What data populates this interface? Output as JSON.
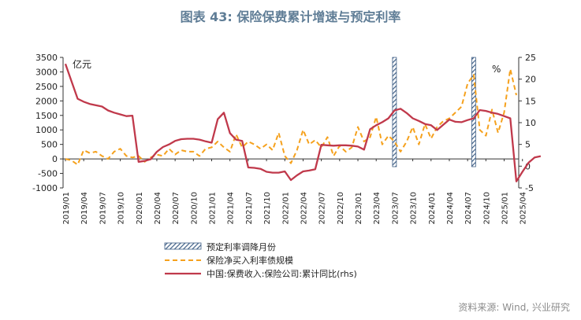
{
  "title": "图表 43: 保险保费累计增速与预定利率",
  "source": "资料来源: Wind, 兴业研究",
  "chart_data": {
    "type": "line",
    "left_unit_label": "亿元",
    "right_unit_label": "%",
    "y_left": {
      "min": -1000,
      "max": 3500,
      "ticks": [
        -1000,
        -500,
        0,
        500,
        1000,
        1500,
        2000,
        2500,
        3000,
        3500
      ]
    },
    "y_right": {
      "min": -5,
      "max": 25,
      "ticks": [
        -5,
        0,
        5,
        10,
        15,
        20,
        25
      ]
    },
    "x_tick_labels": [
      "2019/01",
      "2019/04",
      "2019/07",
      "2019/10",
      "2020/01",
      "2020/04",
      "2020/07",
      "2020/10",
      "2021/01",
      "2021/04",
      "2021/07",
      "2021/10",
      "2022/01",
      "2022/04",
      "2022/07",
      "2022/10",
      "2023/01",
      "2023/04",
      "2023/07",
      "2023/10",
      "2024/01",
      "2024/04",
      "2024/07",
      "2024/10",
      "2025/01",
      "2025/04"
    ],
    "legend": [
      {
        "name": "预定利率调降月份",
        "style": "hatched-bar",
        "color": "#3f5f86"
      },
      {
        "name": "保险净买入利率债规模",
        "style": "dashed",
        "color": "#f5a11d"
      },
      {
        "name": "中国:保费收入:保险公司:累计同比(rhs)",
        "style": "solid",
        "color": "#c0394b"
      }
    ],
    "rate_cut_months": [
      "2023/07",
      "2024/08"
    ],
    "series": [
      {
        "name": "保险净买入利率债规模",
        "axis": "left",
        "values": [
          0,
          -50,
          -200,
          300,
          200,
          250,
          100,
          0,
          250,
          350,
          100,
          50,
          100,
          -100,
          50,
          150,
          100,
          350,
          150,
          300,
          250,
          250,
          100,
          350,
          400,
          600,
          400,
          250,
          850,
          400,
          600,
          500,
          350,
          500,
          300,
          900,
          100,
          -150,
          300,
          1000,
          500,
          650,
          400,
          750,
          100,
          450,
          250,
          400,
          1100,
          600,
          750,
          1450,
          500,
          800,
          600,
          250,
          600,
          1100,
          500,
          1200,
          700,
          1100,
          1300,
          1400,
          1600,
          1800,
          2600,
          2900,
          1000,
          800,
          1700,
          900,
          1600,
          3100,
          2200
        ]
      },
      {
        "name": "中国:保费收入:保险公司:累计同比(rhs)",
        "axis": "right",
        "values": [
          23.5,
          19.5,
          15.5,
          14.8,
          14.3,
          14.0,
          13.7,
          12.8,
          12.3,
          11.9,
          11.5,
          11.6,
          1.0,
          1.2,
          1.6,
          3.3,
          4.4,
          5.0,
          5.8,
          6.2,
          6.3,
          6.3,
          6.1,
          5.7,
          5.4,
          10.8,
          12.3,
          7.6,
          6.1,
          5.8,
          -0.3,
          -0.4,
          -0.6,
          -1.3,
          -1.5,
          -1.5,
          -1.2,
          -3.2,
          -2.1,
          -1.2,
          -1.0,
          -0.7,
          4.9,
          4.8,
          4.7,
          4.8,
          4.8,
          4.7,
          4.5,
          3.8,
          8.5,
          9.4,
          10.1,
          11.0,
          12.8,
          13.2,
          12.2,
          11.0,
          10.4,
          9.7,
          9.4,
          8.3,
          9.5,
          10.7,
          10.2,
          10.1,
          10.6,
          11.0,
          12.9,
          12.7,
          12.3,
          12.0,
          11.5,
          11.0,
          -3.5,
          -1.3,
          0.8,
          2.0,
          2.3
        ]
      }
    ]
  }
}
